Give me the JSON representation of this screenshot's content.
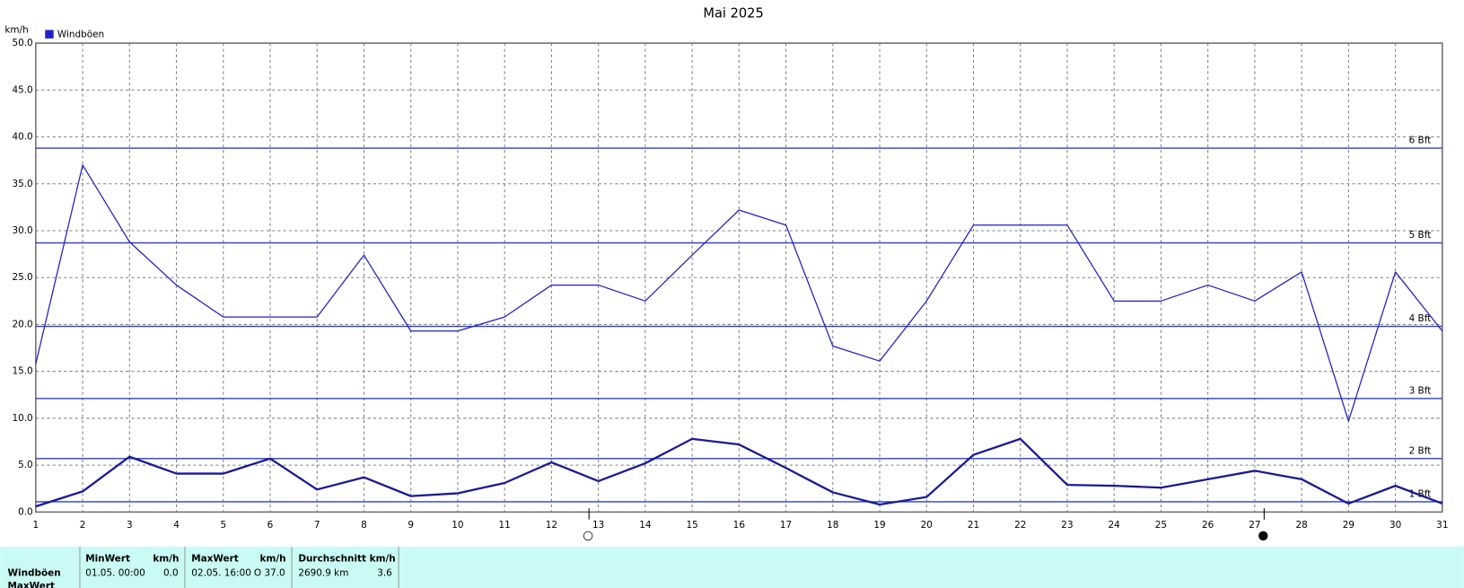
{
  "chart_data": {
    "type": "line",
    "title": "Mai 2025",
    "y_label": "km/h",
    "x": [
      1,
      2,
      3,
      4,
      5,
      6,
      7,
      8,
      9,
      10,
      11,
      12,
      13,
      14,
      15,
      16,
      17,
      18,
      19,
      20,
      21,
      22,
      23,
      24,
      25,
      26,
      27,
      28,
      29,
      30,
      31
    ],
    "xlim": [
      1,
      31
    ],
    "xticks": [
      1,
      2,
      3,
      4,
      5,
      6,
      7,
      8,
      9,
      10,
      11,
      12,
      13,
      14,
      15,
      16,
      17,
      18,
      19,
      20,
      21,
      22,
      23,
      24,
      25,
      26,
      27,
      28,
      29,
      30,
      31
    ],
    "ylim": [
      0,
      50
    ],
    "yticks": [
      {
        "value": 0,
        "label": "0.0"
      },
      {
        "value": 5,
        "label": "5.0"
      },
      {
        "value": 10,
        "label": "10.0"
      },
      {
        "value": 15,
        "label": "15.0"
      },
      {
        "value": 20,
        "label": "20.0"
      },
      {
        "value": 25,
        "label": "25.0"
      },
      {
        "value": 30,
        "label": "30.0"
      },
      {
        "value": 35,
        "label": "35.0"
      },
      {
        "value": 40,
        "label": "40.0"
      },
      {
        "value": 45,
        "label": "45.0"
      },
      {
        "value": 50,
        "label": "50.0"
      }
    ],
    "grid": true,
    "legend": "top-left",
    "series": [
      {
        "name": "Windböen",
        "color": "#1f1fc8",
        "values": [
          15.8,
          37.0,
          28.8,
          24.2,
          20.8,
          20.8,
          20.8,
          27.4,
          19.3,
          19.3,
          20.8,
          24.2,
          24.2,
          22.5,
          27.4,
          32.2,
          30.6,
          17.7,
          16.1,
          22.5,
          30.6,
          30.6,
          30.6,
          22.5,
          22.5,
          24.2,
          22.5,
          25.6,
          9.7,
          25.6,
          19.3
        ]
      },
      {
        "color": "#1a1a96",
        "values": [
          0.6,
          2.2,
          5.9,
          4.1,
          4.1,
          5.7,
          2.4,
          3.7,
          1.7,
          2.0,
          3.1,
          5.3,
          3.3,
          5.2,
          7.8,
          7.2,
          4.7,
          2.1,
          0.8,
          1.6,
          6.1,
          7.8,
          2.9,
          2.8,
          2.6,
          3.5,
          4.4,
          3.5,
          0.9,
          2.8,
          0.9
        ]
      }
    ],
    "reference_lines": [
      {
        "value": 1.1,
        "label": "1 Bft"
      },
      {
        "value": 5.7,
        "label": "2 Bft"
      },
      {
        "value": 12.1,
        "label": "3 Bft"
      },
      {
        "value": 19.8,
        "label": "4 Bft"
      },
      {
        "value": 28.7,
        "label": "5 Bft"
      },
      {
        "value": 38.8,
        "label": "6 Bft"
      }
    ],
    "reference_color": "#2a3ad8",
    "annotations": [
      {
        "x": 12.8,
        "label": "○"
      },
      {
        "x": 27.2,
        "label": "●"
      }
    ]
  },
  "table": {
    "header": [
      "MinWert",
      "km/h",
      "MaxWert",
      "km/h",
      "Durchschnitt km/h"
    ],
    "rows": [
      [
        "Windböen",
        "01.05.  00:00",
        "0.0",
        "02.05.  16:00",
        "O 37.0",
        "2690.9 km",
        "3.6"
      ],
      [
        "MaxWert"
      ]
    ]
  }
}
